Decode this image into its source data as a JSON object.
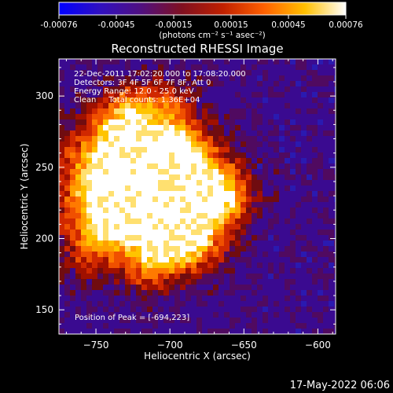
{
  "colorbar": {
    "ticks": [
      "-0.00076",
      "-0.00045",
      "-0.00015",
      "0.00015",
      "0.00045",
      "0.00076"
    ],
    "units": "(photons cm⁻² s⁻¹ asec⁻²)",
    "colors": [
      "#0000ff",
      "#3010c0",
      "#501080",
      "#801020",
      "#c02000",
      "#ff6000",
      "#ffc000",
      "#ffffff"
    ]
  },
  "chart_data": {
    "type": "heatmap",
    "title": "Reconstructed RHESSI Image",
    "xlabel": "Heliocentric X (arcsec)",
    "ylabel": "Heliocentric Y (arcsec)",
    "xlim": [
      -775,
      -588
    ],
    "ylim": [
      133,
      326
    ],
    "x_ticks": [
      -750,
      -700,
      -650,
      -600
    ],
    "y_ticks": [
      150,
      200,
      250,
      300
    ],
    "x_tick_labels": [
      "−750",
      "−700",
      "−650",
      "−600"
    ],
    "y_tick_labels": [
      "150",
      "200",
      "250",
      "300"
    ],
    "value_range": [
      -0.00076,
      0.00076
    ],
    "peak": [
      -694,
      223
    ],
    "annotations": {
      "time": "22-Dec-2011 17:02:20.000 to 17:08:20.000",
      "detectors": "Detectors: 3F 4F 5F 6F 7F 8F, Att 0",
      "energy": "Energy Range: 12.0 - 25.0 keV",
      "clean": "Clean     Total counts: 1.36E+04",
      "peak": "Position of Peak = [-694,223]"
    }
  },
  "footer": {
    "date": "17-May-2022 06:06"
  }
}
